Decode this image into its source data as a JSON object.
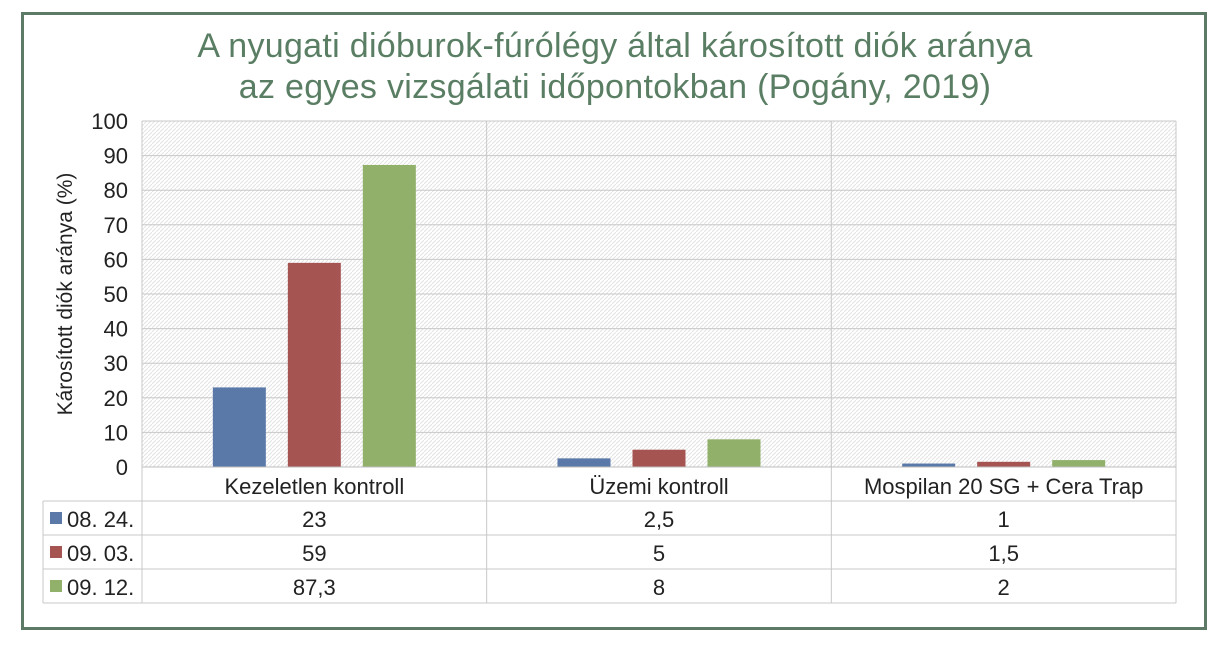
{
  "chart_data": {
    "type": "bar",
    "title_lines": [
      "A nyugati dióburok-fúrólégy által károsított diók aránya",
      "az egyes vizsgálati időpontokban (Pogány, 2019)"
    ],
    "ylabel": "Károsított diók aránya (%)",
    "xlabel": "",
    "ylim": [
      0,
      100
    ],
    "yticks": [
      "0",
      "10",
      "20",
      "30",
      "40",
      "50",
      "60",
      "70",
      "80",
      "90",
      "100"
    ],
    "grid": true,
    "legend": "data-table",
    "categories": [
      "Kezeletlen kontroll",
      "Üzemi kontroll",
      "Mospilan 20 SG + Cera Trap"
    ],
    "series": [
      {
        "name": "08. 24.",
        "color": "#5a79a8",
        "values": [
          23,
          2.5,
          1
        ],
        "labels": [
          "23",
          "2,5",
          "1"
        ]
      },
      {
        "name": "09. 03.",
        "color": "#a65452",
        "values": [
          59,
          5,
          1.5
        ],
        "labels": [
          "59",
          "5",
          "1,5"
        ]
      },
      {
        "name": "09. 12.",
        "color": "#91b06a",
        "values": [
          87.3,
          8,
          2
        ],
        "labels": [
          "87,3",
          "8",
          "2"
        ]
      }
    ]
  }
}
